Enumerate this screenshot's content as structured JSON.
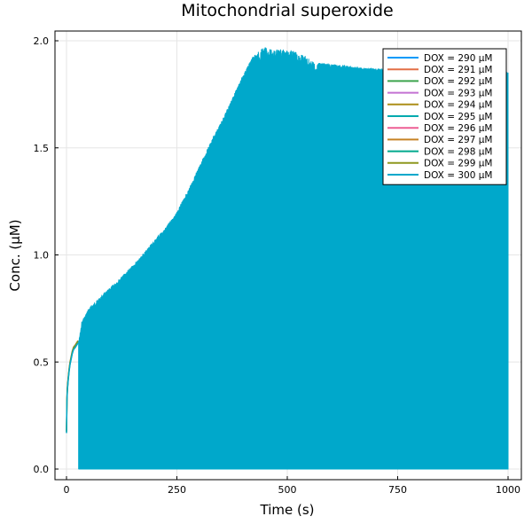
{
  "chart_data": {
    "type": "line",
    "title": "Mitochondrial superoxide",
    "xlabel": "Time (s)",
    "ylabel": "Conc. (μM)",
    "xlim": [
      0,
      1000
    ],
    "ylim": [
      0,
      2.0
    ],
    "xticks": [
      0,
      250,
      500,
      750,
      1000
    ],
    "xtick_labels": [
      "0",
      "250",
      "500",
      "750",
      "1000"
    ],
    "yticks": [
      0.0,
      0.5,
      1.0,
      1.5,
      2.0
    ],
    "ytick_labels": [
      "0.0",
      "0.5",
      "1.0",
      "1.5",
      "2.0"
    ],
    "grid": true,
    "legend_position": "top-right",
    "series": [
      {
        "name": "DOX = 290 μM",
        "color": "#009AFA"
      },
      {
        "name": "DOX = 291 μM",
        "color": "#E36F47"
      },
      {
        "name": "DOX = 292 μM",
        "color": "#3EA44E"
      },
      {
        "name": "DOX = 293 μM",
        "color": "#C371D2"
      },
      {
        "name": "DOX = 294 μM",
        "color": "#AC8E18"
      },
      {
        "name": "DOX = 295 μM",
        "color": "#00AAAE"
      },
      {
        "name": "DOX = 296 μM",
        "color": "#ED5E93"
      },
      {
        "name": "DOX = 297 μM",
        "color": "#C68225"
      },
      {
        "name": "DOX = 298 μM",
        "color": "#00A98D"
      },
      {
        "name": "DOX = 299 μM",
        "color": "#8E971E"
      },
      {
        "name": "DOX = 300 μM",
        "color": "#00A8CB"
      }
    ],
    "pre_oscillation": {
      "x": [
        0,
        1,
        2,
        4,
        6,
        8,
        10,
        13,
        16,
        20,
        23,
        26
      ],
      "y": [
        0.18,
        0.33,
        0.38,
        0.43,
        0.47,
        0.5,
        0.52,
        0.55,
        0.57,
        0.58,
        0.59,
        0.6
      ]
    },
    "oscillation_band": {
      "lower": 0.0,
      "x_start": 28,
      "upper_envelope_x": [
        28,
        35,
        50,
        75,
        100,
        125,
        150,
        175,
        200,
        225,
        250,
        275,
        300,
        325,
        350,
        375,
        400,
        420,
        440,
        450,
        460,
        480,
        500,
        520,
        540,
        560,
        600,
        650,
        700,
        750,
        800,
        850,
        900,
        950,
        1000
      ],
      "upper_envelope_y": [
        0.6,
        0.69,
        0.75,
        0.8,
        0.85,
        0.9,
        0.95,
        1.01,
        1.07,
        1.13,
        1.2,
        1.3,
        1.41,
        1.52,
        1.62,
        1.73,
        1.84,
        1.92,
        1.96,
        1.97,
        1.96,
        1.96,
        1.96,
        1.95,
        1.93,
        1.9,
        1.89,
        1.88,
        1.87,
        1.87,
        1.86,
        1.86,
        1.86,
        1.86,
        1.86
      ]
    }
  }
}
